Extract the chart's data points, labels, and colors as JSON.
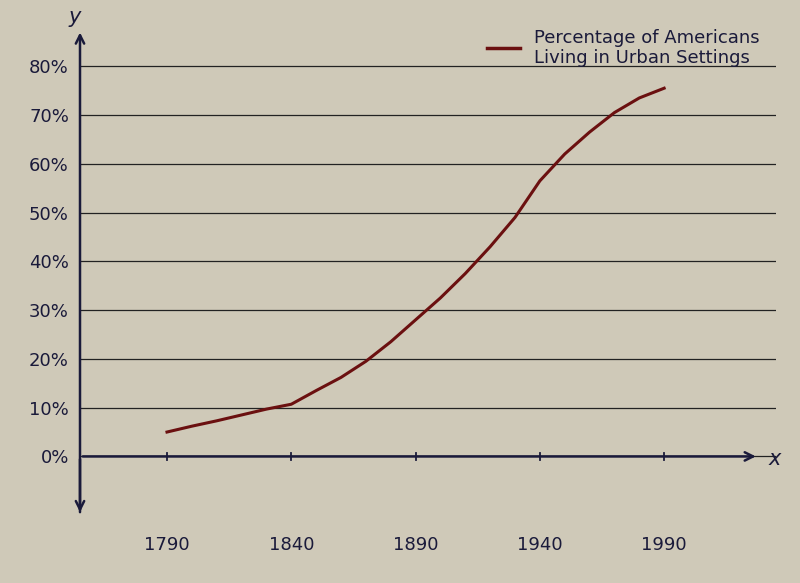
{
  "x_data": [
    1790,
    1800,
    1810,
    1820,
    1830,
    1840,
    1850,
    1860,
    1870,
    1880,
    1890,
    1900,
    1910,
    1920,
    1930,
    1940,
    1950,
    1960,
    1970,
    1980,
    1990
  ],
  "y_data": [
    0.05,
    0.062,
    0.073,
    0.085,
    0.097,
    0.107,
    0.135,
    0.162,
    0.195,
    0.235,
    0.28,
    0.325,
    0.375,
    0.43,
    0.49,
    0.565,
    0.62,
    0.665,
    0.705,
    0.735,
    0.755
  ],
  "line_color": "#6B1010",
  "line_width": 2.2,
  "background_color": "#cfc9b8",
  "yticks": [
    0.0,
    0.1,
    0.2,
    0.3,
    0.4,
    0.5,
    0.6,
    0.7,
    0.8
  ],
  "ytick_labels": [
    "0%",
    "10%",
    "20%",
    "30%",
    "40%",
    "50%",
    "60%",
    "70%",
    "80%"
  ],
  "xticks": [
    1790,
    1840,
    1890,
    1940,
    1990
  ],
  "xtick_labels": [
    "1790",
    "1840",
    "1890",
    "1940",
    "1990"
  ],
  "xlim": [
    1755,
    2035
  ],
  "ylim": [
    -0.14,
    0.9
  ],
  "xlabel": "x",
  "ylabel": "y",
  "legend_label": "Percentage of Americans\nLiving in Urban Settings",
  "grid_color": "#222222",
  "axis_color": "#1a1a3a",
  "tick_label_color": "#1a1a3a",
  "label_color": "#1a1a3a",
  "legend_fontsize": 13,
  "tick_fontsize": 13
}
